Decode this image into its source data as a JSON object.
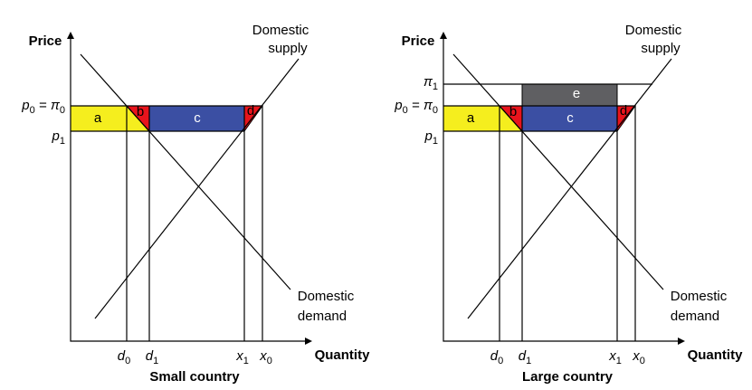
{
  "panels": [
    {
      "title": "Small country",
      "y_axis": "Price",
      "x_axis": "Quantity",
      "supply": [
        "Domestic",
        "supply"
      ],
      "demand": [
        "Domestic",
        "demand"
      ],
      "regions": [
        "a",
        "b",
        "c",
        "d"
      ],
      "price_labels": [
        [
          {
            "t": "p",
            "s": "0"
          },
          {
            "t": " = π",
            "s": "0"
          }
        ],
        [
          {
            "t": "p",
            "s": "1"
          }
        ]
      ],
      "quantity_labels": [
        {
          "t": "d",
          "s": "0"
        },
        {
          "t": "d",
          "s": "1"
        },
        {
          "t": "x",
          "s": "1"
        },
        {
          "t": "x",
          "s": "0"
        }
      ]
    },
    {
      "title": "Large country",
      "y_axis": "Price",
      "x_axis": "Quantity",
      "supply": [
        "Domestic",
        "supply"
      ],
      "demand": [
        "Domestic",
        "demand"
      ],
      "regions": [
        "a",
        "b",
        "c",
        "d",
        "e"
      ],
      "price_labels": [
        [
          {
            "t": "p",
            "s": "0"
          },
          {
            "t": " = π",
            "s": "0"
          }
        ],
        [
          {
            "t": "p",
            "s": "1"
          }
        ],
        [
          {
            "t": "π",
            "s": "1"
          }
        ]
      ],
      "quantity_labels": [
        {
          "t": "d",
          "s": "0"
        },
        {
          "t": "d",
          "s": "1"
        },
        {
          "t": "x",
          "s": "1"
        },
        {
          "t": "x",
          "s": "0"
        }
      ]
    }
  ]
}
